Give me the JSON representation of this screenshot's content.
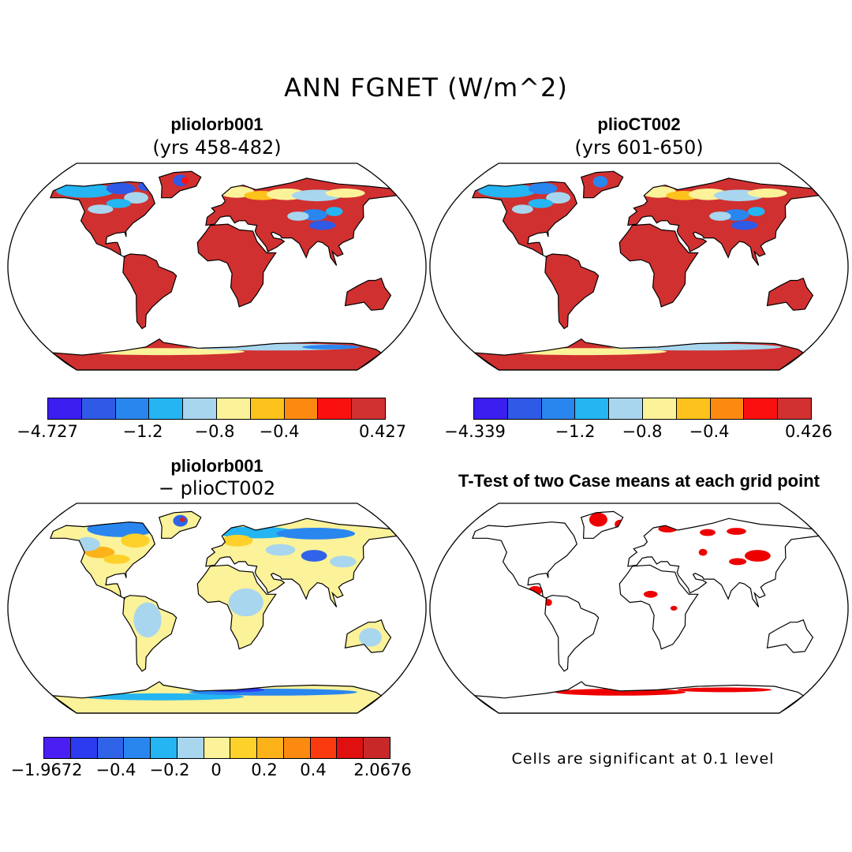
{
  "title": "ANN FGNET (W/m^2)",
  "colors": {
    "ocean": "#ffffff",
    "coast": "#000000",
    "land_high": "#d03030",
    "sig": "#ee0000"
  },
  "panels": [
    {
      "title": "pliolorb001",
      "subtitle": "(yrs 458-482)",
      "colorbar": {
        "colors": [
          "#3b1ef0",
          "#2f5ae6",
          "#2a86ef",
          "#24b5f2",
          "#a8d6ee",
          "#fbf299",
          "#fdc21c",
          "#fd8a10",
          "#fb1010",
          "#d03030"
        ],
        "labels": [
          "−4.727",
          "−1.2",
          "−0.8",
          "−0.4",
          "0.427"
        ]
      }
    },
    {
      "title": "plioCT002",
      "subtitle": "(yrs 601-650)",
      "colorbar": {
        "colors": [
          "#3b1ef0",
          "#2f5ae6",
          "#2a86ef",
          "#24b5f2",
          "#a8d6ee",
          "#fbf299",
          "#fdc21c",
          "#fd8a10",
          "#fb1010",
          "#d03030"
        ],
        "labels": [
          "−4.339",
          "−1.2",
          "−0.8",
          "−0.4",
          "0.426"
        ]
      }
    },
    {
      "title": "pliolorb001",
      "subtitle": "− plioCT002",
      "colorbar": {
        "colors": [
          "#4b1ef4",
          "#2c3bf0",
          "#2f64e8",
          "#2a86ef",
          "#24b5f2",
          "#a8d6ee",
          "#fbf299",
          "#fdd12a",
          "#fdb21a",
          "#fd8a10",
          "#fb3a10",
          "#e01010",
          "#c82828"
        ],
        "labels": [
          "−1.9672",
          "−0.4",
          "−0.2",
          "0",
          "0.2",
          "0.4",
          "2.0676"
        ]
      }
    },
    {
      "title": "T-Test of two Case means at each grid point",
      "note": "Cells are significant at 0.1 level"
    }
  ]
}
